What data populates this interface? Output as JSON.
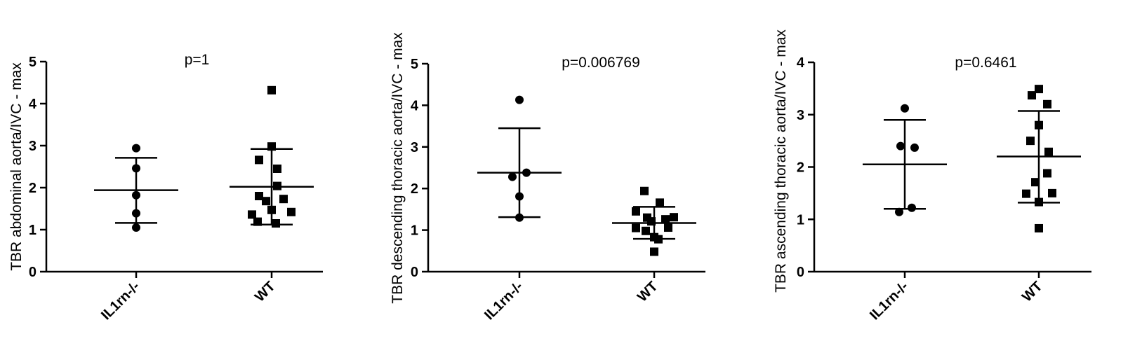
{
  "chart_data": [
    {
      "type": "scatter",
      "title": "p=1",
      "ylabel": "TBR abdominal aorta/IVC - max",
      "categories": [
        "IL1rn-/-",
        "WT"
      ],
      "ylim": [
        0,
        5
      ],
      "yticks": [
        "0",
        "1",
        "2",
        "3",
        "4",
        "5"
      ],
      "series": [
        {
          "category": "IL1rn-/-",
          "marker": "circle",
          "mean": 1.94,
          "sd_low": 1.16,
          "sd_high": 2.71,
          "values": [
            2.94,
            2.46,
            1.82,
            1.39,
            1.05
          ]
        },
        {
          "category": "WT",
          "marker": "square",
          "mean": 2.02,
          "sd_low": 1.12,
          "sd_high": 2.92,
          "values": [
            4.32,
            2.98,
            2.66,
            2.45,
            2.04,
            1.8,
            1.73,
            1.68,
            1.47,
            1.42,
            1.36,
            1.19,
            1.15
          ]
        }
      ]
    },
    {
      "type": "scatter",
      "title": "p=0.006769",
      "ylabel": "TBR descending thoracic aorta/IVC - max",
      "categories": [
        "IL1rn-/-",
        "WT"
      ],
      "ylim": [
        0,
        5
      ],
      "yticks": [
        "0",
        "1",
        "2",
        "3",
        "4",
        "5"
      ],
      "series": [
        {
          "category": "IL1rn-/-",
          "marker": "circle",
          "mean": 2.38,
          "sd_low": 1.31,
          "sd_high": 3.45,
          "values": [
            4.13,
            2.38,
            2.28,
            1.81,
            1.3
          ]
        },
        {
          "category": "WT",
          "marker": "square",
          "mean": 1.17,
          "sd_low": 0.79,
          "sd_high": 1.56,
          "values": [
            1.94,
            1.66,
            1.45,
            1.31,
            1.3,
            1.26,
            1.21,
            1.06,
            1.05,
            0.98,
            0.83,
            0.78,
            0.48
          ]
        }
      ]
    },
    {
      "type": "scatter",
      "title": "p=0.6461",
      "ylabel": "TBR ascending thoracic aorta/IVC - max",
      "categories": [
        "IL1rn-/-",
        "WT"
      ],
      "ylim": [
        0,
        4
      ],
      "yticks": [
        "0",
        "1",
        "2",
        "3",
        "4"
      ],
      "series": [
        {
          "category": "IL1rn-/-",
          "marker": "circle",
          "mean": 2.05,
          "sd_low": 1.2,
          "sd_high": 2.9,
          "values": [
            3.12,
            2.4,
            2.37,
            1.22,
            1.14
          ]
        },
        {
          "category": "WT",
          "marker": "square",
          "mean": 2.2,
          "sd_low": 1.32,
          "sd_high": 3.07,
          "values": [
            3.49,
            3.37,
            3.2,
            2.8,
            2.5,
            2.29,
            1.88,
            1.71,
            1.5,
            1.49,
            1.33,
            0.83
          ]
        }
      ]
    }
  ]
}
